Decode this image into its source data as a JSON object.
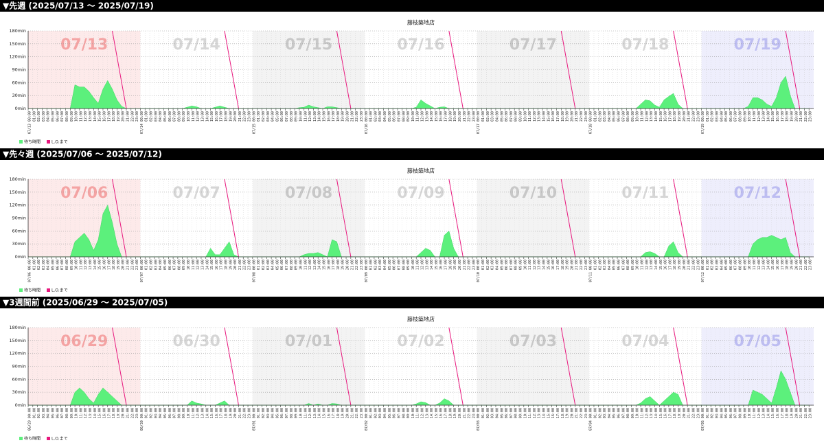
{
  "hours": [
    "00:00",
    "01:00",
    "02:00",
    "03:00",
    "04:00",
    "05:00",
    "06:00",
    "07:00",
    "08:00",
    "09:00",
    "10:00",
    "11:00",
    "12:00",
    "13:00",
    "14:00",
    "15:00",
    "16:00",
    "17:00",
    "18:00",
    "19:00",
    "20:00",
    "21:00",
    "22:00",
    "23:00"
  ],
  "chart_data": [
    {
      "type": "area",
      "heading": "▼先週 (2025/07/13 〜 2025/07/19)",
      "title": "藤枝築地店",
      "days": [
        "07/13",
        "07/14",
        "07/15",
        "07/16",
        "07/17",
        "07/18",
        "07/19"
      ],
      "xlim": [
        0,
        168
      ],
      "ylim": [
        0,
        180
      ],
      "yticks": [
        {
          "value": 0,
          "label": "0min"
        },
        {
          "value": 30,
          "label": "30min"
        },
        {
          "value": 60,
          "label": "60min"
        },
        {
          "value": 90,
          "label": "90min"
        },
        {
          "value": 120,
          "label": "120min"
        },
        {
          "value": 150,
          "label": "150min"
        },
        {
          "value": 180,
          "label": "180min"
        }
      ],
      "grid": true,
      "series": [
        {
          "name": "待ち時間",
          "color": "#5cf07c",
          "values": [
            0,
            0,
            0,
            0,
            0,
            0,
            0,
            0,
            0,
            0,
            55,
            50,
            50,
            40,
            25,
            12,
            45,
            65,
            45,
            20,
            5,
            0,
            0,
            0,
            0,
            0,
            0,
            0,
            0,
            0,
            0,
            0,
            0,
            0,
            3,
            6,
            4,
            0,
            0,
            0,
            3,
            6,
            3,
            0,
            0,
            0,
            0,
            0,
            0,
            0,
            0,
            0,
            0,
            0,
            0,
            0,
            0,
            0,
            2,
            3,
            8,
            4,
            2,
            0,
            4,
            4,
            2,
            0,
            0,
            0,
            0,
            0,
            0,
            0,
            0,
            0,
            0,
            0,
            0,
            0,
            0,
            0,
            0,
            3,
            20,
            12,
            6,
            0,
            3,
            4,
            0,
            0,
            0,
            0,
            0,
            0,
            0,
            0,
            0,
            0,
            0,
            0,
            0,
            0,
            0,
            0,
            0,
            0,
            0,
            0,
            0,
            0,
            0,
            0,
            0,
            0,
            0,
            0,
            0,
            0,
            0,
            0,
            0,
            0,
            0,
            0,
            0,
            0,
            0,
            0,
            0,
            10,
            20,
            18,
            8,
            3,
            20,
            28,
            35,
            10,
            0,
            0,
            0,
            0,
            0,
            0,
            0,
            0,
            0,
            0,
            0,
            0,
            0,
            0,
            5,
            25,
            25,
            20,
            10,
            5,
            25,
            60,
            75,
            30,
            0,
            0,
            0,
            0
          ]
        },
        {
          "name": "L.O.まで",
          "color": "#e8177d",
          "x": [
            18,
            21,
            42,
            45,
            66,
            69,
            90,
            93,
            114,
            117,
            138,
            141,
            162,
            165
          ],
          "values": [
            180,
            0,
            180,
            0,
            180,
            0,
            180,
            0,
            180,
            0,
            180,
            0,
            180,
            0
          ]
        }
      ]
    },
    {
      "type": "area",
      "heading": "▼先々週 (2025/07/06 〜 2025/07/12)",
      "title": "藤枝築地店",
      "days": [
        "07/06",
        "07/07",
        "07/08",
        "07/09",
        "07/10",
        "07/11",
        "07/12"
      ],
      "xlim": [
        0,
        168
      ],
      "ylim": [
        0,
        180
      ],
      "yticks": [
        {
          "value": 0,
          "label": "0min"
        },
        {
          "value": 30,
          "label": "30min"
        },
        {
          "value": 60,
          "label": "60min"
        },
        {
          "value": 90,
          "label": "90min"
        },
        {
          "value": 120,
          "label": "120min"
        },
        {
          "value": 150,
          "label": "150min"
        },
        {
          "value": 180,
          "label": "180min"
        }
      ],
      "grid": true,
      "series": [
        {
          "name": "待ち時間",
          "color": "#5cf07c",
          "values": [
            0,
            0,
            0,
            0,
            0,
            0,
            0,
            0,
            0,
            0,
            35,
            45,
            55,
            40,
            15,
            40,
            100,
            120,
            80,
            30,
            0,
            0,
            0,
            0,
            0,
            0,
            0,
            0,
            0,
            0,
            0,
            0,
            0,
            0,
            0,
            0,
            0,
            0,
            0,
            20,
            5,
            5,
            20,
            35,
            5,
            0,
            0,
            0,
            0,
            0,
            0,
            0,
            0,
            0,
            0,
            0,
            0,
            0,
            0,
            5,
            8,
            8,
            10,
            5,
            0,
            40,
            35,
            0,
            0,
            0,
            0,
            0,
            0,
            0,
            0,
            0,
            0,
            0,
            0,
            0,
            0,
            0,
            0,
            0,
            10,
            20,
            15,
            0,
            0,
            50,
            60,
            20,
            0,
            0,
            0,
            0,
            0,
            0,
            0,
            0,
            0,
            0,
            0,
            0,
            0,
            0,
            0,
            0,
            0,
            0,
            0,
            0,
            0,
            0,
            0,
            0,
            0,
            0,
            0,
            0,
            0,
            0,
            0,
            0,
            0,
            0,
            0,
            0,
            0,
            0,
            0,
            0,
            10,
            12,
            8,
            0,
            0,
            25,
            35,
            10,
            0,
            0,
            0,
            0,
            0,
            0,
            0,
            0,
            0,
            0,
            0,
            0,
            0,
            0,
            0,
            30,
            40,
            45,
            45,
            50,
            45,
            40,
            45,
            10,
            0,
            0,
            0,
            0
          ]
        },
        {
          "name": "L.O.まで",
          "color": "#e8177d",
          "x": [
            18,
            21,
            42,
            45,
            66,
            69,
            90,
            93,
            114,
            117,
            138,
            141,
            162,
            165
          ],
          "values": [
            180,
            0,
            180,
            0,
            180,
            0,
            180,
            0,
            180,
            0,
            180,
            0,
            180,
            0
          ]
        }
      ]
    },
    {
      "type": "area",
      "heading": "▼3週間前 (2025/06/29 〜 2025/07/05)",
      "title": "藤枝築地店",
      "days": [
        "06/29",
        "06/30",
        "07/01",
        "07/02",
        "07/03",
        "07/04",
        "07/05"
      ],
      "xlim": [
        0,
        168
      ],
      "ylim": [
        0,
        180
      ],
      "yticks": [
        {
          "value": 0,
          "label": "0min"
        },
        {
          "value": 30,
          "label": "30min"
        },
        {
          "value": 60,
          "label": "60min"
        },
        {
          "value": 90,
          "label": "90min"
        },
        {
          "value": 120,
          "label": "120min"
        },
        {
          "value": 150,
          "label": "150min"
        },
        {
          "value": 180,
          "label": "180min"
        }
      ],
      "grid": true,
      "series": [
        {
          "name": "待ち時間",
          "color": "#5cf07c",
          "values": [
            0,
            0,
            0,
            0,
            0,
            0,
            0,
            0,
            0,
            0,
            30,
            40,
            30,
            15,
            5,
            25,
            40,
            30,
            20,
            10,
            0,
            0,
            0,
            0,
            0,
            0,
            0,
            0,
            0,
            0,
            0,
            0,
            0,
            0,
            0,
            10,
            5,
            3,
            0,
            0,
            0,
            5,
            10,
            0,
            0,
            0,
            0,
            0,
            0,
            0,
            0,
            0,
            0,
            0,
            0,
            0,
            0,
            0,
            0,
            0,
            4,
            0,
            3,
            0,
            0,
            4,
            3,
            0,
            0,
            0,
            0,
            0,
            0,
            0,
            0,
            0,
            0,
            0,
            0,
            0,
            0,
            0,
            0,
            3,
            8,
            6,
            0,
            0,
            5,
            15,
            10,
            0,
            0,
            0,
            0,
            0,
            0,
            0,
            0,
            0,
            0,
            0,
            0,
            0,
            0,
            0,
            0,
            0,
            0,
            0,
            0,
            0,
            0,
            0,
            0,
            0,
            0,
            0,
            0,
            0,
            0,
            0,
            0,
            0,
            0,
            0,
            0,
            0,
            0,
            0,
            0,
            5,
            15,
            20,
            10,
            0,
            10,
            20,
            30,
            25,
            0,
            0,
            0,
            0,
            0,
            0,
            0,
            0,
            0,
            0,
            0,
            0,
            0,
            0,
            0,
            35,
            30,
            25,
            15,
            5,
            40,
            80,
            60,
            30,
            0,
            0,
            0,
            0
          ]
        },
        {
          "name": "L.O.まで",
          "color": "#e8177d",
          "x": [
            18,
            21,
            42,
            45,
            66,
            69,
            90,
            93,
            114,
            117,
            138,
            141,
            162,
            165
          ],
          "values": [
            180,
            0,
            180,
            0,
            180,
            0,
            180,
            0,
            180,
            0,
            180,
            0,
            180,
            0
          ]
        }
      ]
    }
  ]
}
